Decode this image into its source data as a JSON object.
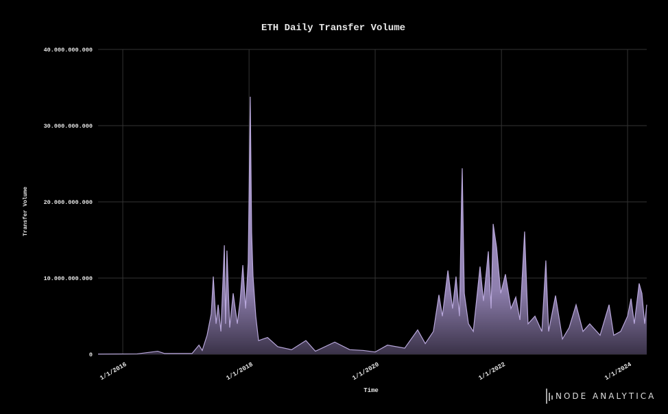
{
  "chart_data": {
    "type": "area",
    "title": "ETH Daily Transfer Volume",
    "x_label": "Time",
    "y_label": "Transfer Volume",
    "brand": "NODE ANALYTICA",
    "grid": true,
    "xlim": [
      "8/11/2015",
      "4/21/2024"
    ],
    "xticks": [
      "1/1/2016",
      "1/1/2018",
      "1/1/2020",
      "1/1/2022",
      "1/1/2024"
    ],
    "ylim": [
      0,
      40000000000
    ],
    "yticks": [
      0,
      {
        "value": 10000000000,
        "label": "10.000.000.000"
      },
      {
        "value": 20000000000,
        "label": "20.000.000.000"
      },
      {
        "value": 30000000000,
        "label": "30.000.000.000"
      },
      {
        "value": 40000000000,
        "label": "40.000.000.000"
      }
    ],
    "x": [
      "8/11/2015",
      "3/24/2016",
      "7/21/2016",
      "8/30/2016",
      "2/5/2017",
      "3/17/2017",
      "4/5/2017",
      "5/3/2017",
      "5/27/2017",
      "6/8/2017",
      "6/24/2017",
      "7/6/2017",
      "7/22/2017",
      "8/11/2017",
      "8/18/2017",
      "8/26/2017",
      "9/11/2017",
      "10/1/2017",
      "10/25/2017",
      "11/10/2017",
      "11/26/2017",
      "12/12/2017",
      "12/27/2017",
      "1/8/2018",
      "1/16/2018",
      "1/24/2018",
      "2/9/2018",
      "2/25/2018",
      "4/18/2018",
      "6/16/2018",
      "9/4/2018",
      "11/26/2018",
      "1/20/2019",
      "5/12/2019",
      "8/7/2019",
      "10/25/2019",
      "1/1/2020",
      "3/12/2020",
      "6/20/2020",
      "9/3/2020",
      "10/17/2020",
      "12/3/2020",
      "1/4/2021",
      "1/24/2021",
      "2/25/2021",
      "3/24/2021",
      "4/13/2021",
      "5/3/2021",
      "5/15/2021",
      "5/19/2021",
      "5/31/2021",
      "6/24/2021",
      "7/22/2021",
      "8/30/2021",
      "9/19/2021",
      "10/17/2021",
      "11/2/2021",
      "11/14/2021",
      "12/4/2021",
      "12/28/2021",
      "1/24/2022",
      "2/25/2022",
      "3/25/2022",
      "4/18/2022",
      "5/15/2022",
      "6/4/2022",
      "7/14/2022",
      "8/23/2022",
      "9/15/2022",
      "10/1/2022",
      "11/10/2022",
      "12/20/2022",
      "1/28/2023",
      "3/9/2023",
      "4/18/2023",
      "5/27/2023",
      "7/26/2023",
      "9/16/2023",
      "10/13/2023",
      "11/22/2023",
      "1/1/2024",
      "1/21/2024",
      "2/9/2024",
      "3/8/2024",
      "3/24/2024",
      "4/9/2024",
      "4/21/2024"
    ],
    "series": [
      {
        "name": "Transfer Volume",
        "color": "#b9a8dc",
        "values": [
          20000000,
          50000000,
          400000000,
          100000000,
          100000000,
          1200000000,
          500000000,
          2500000000,
          5300000000,
          10200000000,
          4000000000,
          6500000000,
          3000000000,
          14300000000,
          4000000000,
          13600000000,
          3500000000,
          8000000000,
          4000000000,
          7000000000,
          11700000000,
          6000000000,
          12000000000,
          33800000000,
          16000000000,
          10300000000,
          5000000000,
          1800000000,
          2200000000,
          1000000000,
          600000000,
          1800000000,
          400000000,
          1600000000,
          600000000,
          500000000,
          300000000,
          1200000000,
          800000000,
          3200000000,
          1400000000,
          3000000000,
          7800000000,
          5000000000,
          11000000000,
          6000000000,
          10200000000,
          5000000000,
          20500000000,
          24400000000,
          8000000000,
          4000000000,
          3000000000,
          11500000000,
          7000000000,
          13500000000,
          6000000000,
          17100000000,
          14000000000,
          8000000000,
          10500000000,
          6000000000,
          7500000000,
          4500000000,
          16100000000,
          4000000000,
          5000000000,
          3000000000,
          12300000000,
          3000000000,
          7700000000,
          2000000000,
          3500000000,
          6500000000,
          3000000000,
          4000000000,
          2500000000,
          6500000000,
          2500000000,
          3000000000,
          5000000000,
          7300000000,
          4000000000,
          9300000000,
          8000000000,
          4000000000,
          6500000000
        ]
      }
    ]
  }
}
